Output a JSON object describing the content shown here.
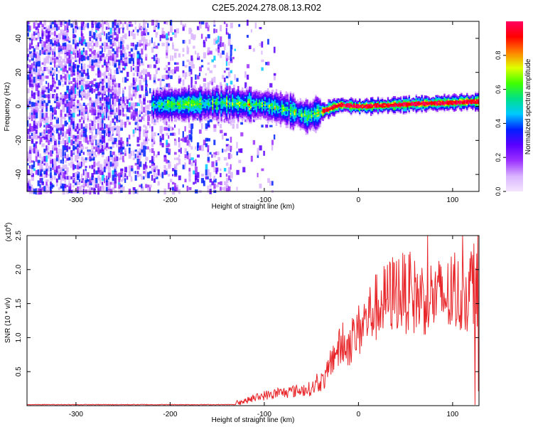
{
  "title": "C2E5.2024.278.08.13.R02",
  "chart_data": [
    {
      "type": "heatmap",
      "xlabel": "Height of straight line (km)",
      "ylabel": "Frequency (Hz)",
      "xlim": [
        -352,
        128
      ],
      "ylim": [
        -50,
        50
      ],
      "xticks": [
        -300,
        -200,
        -100,
        0,
        100
      ],
      "yticks": [
        -40,
        -20,
        0,
        20,
        40
      ],
      "xtick_labels": [
        "-300",
        "-200",
        "-100",
        "0",
        "100"
      ],
      "ytick_labels": [
        "-40",
        "-20",
        "0",
        "20",
        "40"
      ],
      "colorbar": {
        "label": "Normalized spectral amplitude",
        "range": [
          0,
          1
        ],
        "ticks": [
          0.0,
          0.2,
          0.4,
          0.6,
          0.8
        ],
        "tick_labels": [
          "0.0",
          "0.2",
          "0.4",
          "0.6",
          "0.8"
        ],
        "colors": [
          "#f4e6ff",
          "#d9b3ff",
          "#9b30ff",
          "#5a00ff",
          "#0020ff",
          "#00c8ff",
          "#00e08a",
          "#40ff00",
          "#e0ff00",
          "#ff8000",
          "#ff0000",
          "#ff0060"
        ]
      },
      "ridge_center_hz": [
        {
          "x": -215,
          "y": 1
        },
        {
          "x": -150,
          "y": 2
        },
        {
          "x": -100,
          "y": 1
        },
        {
          "x": -75,
          "y": -2
        },
        {
          "x": -55,
          "y": -6
        },
        {
          "x": -40,
          "y": -3
        },
        {
          "x": -20,
          "y": 1
        },
        {
          "x": 0,
          "y": 0
        },
        {
          "x": 40,
          "y": 1
        },
        {
          "x": 80,
          "y": 2
        },
        {
          "x": 128,
          "y": 3
        }
      ]
    },
    {
      "type": "line",
      "xlabel": "Height of straight line (km)",
      "ylabel": "SNR (10 * v/v)",
      "multiplier_label": "(x10",
      "multiplier_exp": "4",
      "multiplier_close": ")",
      "xlim": [
        -352,
        128
      ],
      "ylim": [
        0,
        2.5
      ],
      "xticks": [
        -300,
        -200,
        -100,
        0,
        100
      ],
      "yticks": [
        0.5,
        1.0,
        1.5,
        2.0,
        2.5
      ],
      "xtick_labels": [
        "-300",
        "-200",
        "-100",
        "0",
        "100"
      ],
      "ytick_labels": [
        "0.5",
        "1.0",
        "1.5",
        "2.0",
        "2.5"
      ],
      "series": [
        {
          "color": "#e8262a",
          "envelope": [
            {
              "x": -352,
              "y": 0.01
            },
            {
              "x": -150,
              "y": 0.01
            },
            {
              "x": -125,
              "y": 0.05
            },
            {
              "x": -100,
              "y": 0.15
            },
            {
              "x": -75,
              "y": 0.2
            },
            {
              "x": -50,
              "y": 0.25
            },
            {
              "x": -35,
              "y": 0.4
            },
            {
              "x": -25,
              "y": 0.8
            },
            {
              "x": -10,
              "y": 0.9
            },
            {
              "x": 0,
              "y": 1.1
            },
            {
              "x": 15,
              "y": 1.4
            },
            {
              "x": 25,
              "y": 1.5
            },
            {
              "x": 40,
              "y": 1.7
            },
            {
              "x": 60,
              "y": 1.6
            },
            {
              "x": 80,
              "y": 1.6
            },
            {
              "x": 100,
              "y": 1.6
            },
            {
              "x": 115,
              "y": 1.65
            },
            {
              "x": 125,
              "y": 1.9
            }
          ]
        }
      ]
    }
  ]
}
